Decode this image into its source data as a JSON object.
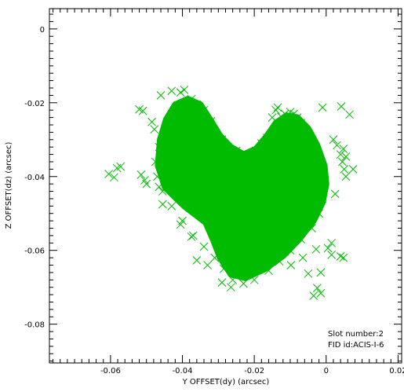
{
  "chart_data": {
    "type": "scatter",
    "title": "",
    "xlabel": "Y OFFSET(dy) (arcsec)",
    "ylabel": "Z OFFSET(dz) (arcsec)",
    "xlim": [
      -0.077,
      0.021
    ],
    "ylim": [
      -0.0905,
      0.0055
    ],
    "xticks": [
      -0.06,
      -0.04,
      -0.02,
      0,
      0.02
    ],
    "xtick_labels": [
      "-0.06",
      "-0.04",
      "-0.02",
      "0",
      "0.02"
    ],
    "yticks": [
      0,
      -0.02,
      -0.04,
      -0.06,
      -0.08
    ],
    "ytick_labels": [
      "0",
      "-0.02",
      "-0.04",
      "-0.06",
      "-0.08"
    ],
    "marker": "x",
    "color": "#00bb00",
    "grid": false,
    "annotations": [
      "Slot number:2",
      "FID id:ACIS-I-6"
    ],
    "series": [
      {
        "points": [
          [
            -0.0605,
            -0.0393
          ],
          [
            -0.059,
            -0.0402
          ],
          [
            -0.0582,
            -0.0377
          ],
          [
            -0.0572,
            -0.0373
          ],
          [
            -0.052,
            -0.0218
          ],
          [
            -0.051,
            -0.0222
          ],
          [
            -0.0485,
            -0.0252
          ],
          [
            -0.0478,
            -0.0272
          ],
          [
            -0.0515,
            -0.0395
          ],
          [
            -0.0505,
            -0.041
          ],
          [
            -0.05,
            -0.042
          ],
          [
            -0.046,
            -0.018
          ],
          [
            -0.043,
            -0.0168
          ],
          [
            -0.0405,
            -0.0172
          ],
          [
            -0.0395,
            -0.0165
          ],
          [
            -0.0375,
            -0.019
          ],
          [
            -0.031,
            -0.029
          ],
          [
            -0.029,
            -0.03
          ],
          [
            -0.028,
            -0.0315
          ],
          [
            -0.027,
            -0.033
          ],
          [
            -0.026,
            -0.0345
          ],
          [
            -0.025,
            -0.033
          ],
          [
            -0.024,
            -0.0345
          ],
          [
            -0.0225,
            -0.035
          ],
          [
            -0.021,
            -0.034
          ],
          [
            -0.0195,
            -0.033
          ],
          [
            -0.018,
            -0.031
          ],
          [
            -0.0165,
            -0.0295
          ],
          [
            -0.0135,
            -0.0255
          ],
          [
            -0.0125,
            -0.0238
          ],
          [
            -0.0115,
            -0.023
          ],
          [
            -0.01,
            -0.0225
          ],
          [
            -0.009,
            -0.023
          ],
          [
            -0.008,
            -0.024
          ],
          [
            -0.007,
            -0.0255
          ],
          [
            -0.006,
            -0.027
          ],
          [
            -0.0045,
            -0.029
          ],
          [
            -0.003,
            -0.032
          ],
          [
            -0.002,
            -0.035
          ],
          [
            -0.001,
            -0.038
          ],
          [
            -0.0005,
            -0.042
          ],
          [
            -0.001,
            -0.046
          ],
          [
            -0.002,
            -0.05
          ],
          [
            -0.004,
            -0.054
          ],
          [
            -0.007,
            -0.057
          ],
          [
            -0.01,
            -0.06
          ],
          [
            -0.013,
            -0.063
          ],
          [
            -0.016,
            -0.0655
          ],
          [
            -0.02,
            -0.068
          ],
          [
            -0.023,
            -0.069
          ],
          [
            -0.026,
            -0.068
          ],
          [
            -0.0285,
            -0.065
          ],
          [
            -0.031,
            -0.062
          ],
          [
            -0.034,
            -0.059
          ],
          [
            -0.037,
            -0.056
          ],
          [
            -0.04,
            -0.052
          ],
          [
            -0.043,
            -0.048
          ],
          [
            -0.0455,
            -0.044
          ],
          [
            -0.047,
            -0.04
          ],
          [
            -0.0475,
            -0.036
          ],
          [
            -0.0465,
            -0.032
          ],
          [
            -0.045,
            -0.029
          ],
          [
            -0.044,
            -0.025
          ],
          [
            -0.042,
            -0.022
          ],
          [
            -0.039,
            -0.02
          ],
          [
            -0.036,
            -0.0205
          ],
          [
            -0.034,
            -0.022
          ],
          [
            -0.032,
            -0.025
          ],
          [
            -0.014,
            -0.022
          ],
          [
            -0.015,
            -0.024
          ],
          [
            0.002,
            -0.03
          ],
          [
            0.003,
            -0.0315
          ],
          [
            0.004,
            -0.034
          ],
          [
            0.0045,
            -0.036
          ],
          [
            0.005,
            -0.038
          ],
          [
            0.0055,
            -0.04
          ],
          [
            -0.0135,
            -0.0213
          ],
          [
            -0.01,
            -0.0236
          ],
          [
            -0.001,
            -0.0213
          ],
          [
            0.0042,
            -0.021
          ],
          [
            0.0065,
            -0.0232
          ],
          [
            0.0048,
            -0.0325
          ],
          [
            0.0055,
            -0.0346
          ],
          [
            0.0075,
            -0.038
          ],
          [
            0.0025,
            -0.0447
          ],
          [
            0.0015,
            -0.058
          ],
          [
            0.0005,
            -0.0594
          ],
          [
            0.0015,
            -0.0612
          ],
          [
            0.004,
            -0.0616
          ],
          [
            0.0048,
            -0.062
          ],
          [
            -0.0028,
            -0.0597
          ],
          [
            -0.0065,
            -0.062
          ],
          [
            -0.0115,
            -0.0603
          ],
          [
            -0.0098,
            -0.064
          ],
          [
            -0.005,
            -0.0663
          ],
          [
            -0.0015,
            -0.066
          ],
          [
            -0.0025,
            -0.0702
          ],
          [
            -0.0015,
            -0.0716
          ],
          [
            -0.0035,
            -0.0723
          ],
          [
            -0.0225,
            -0.066
          ],
          [
            -0.0265,
            -0.07
          ],
          [
            -0.029,
            -0.0687
          ],
          [
            -0.033,
            -0.064
          ],
          [
            -0.036,
            -0.0627
          ],
          [
            -0.0375,
            -0.0563
          ],
          [
            -0.0405,
            -0.053
          ],
          [
            -0.0455,
            -0.0475
          ],
          [
            -0.0465,
            -0.0428
          ]
        ]
      }
    ]
  }
}
